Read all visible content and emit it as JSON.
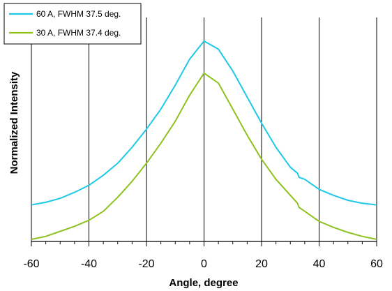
{
  "chart_data": {
    "type": "line",
    "xlabel": "Angle, degree",
    "ylabel": "Normalized Intensity",
    "xlim": [
      -60,
      60
    ],
    "ylim": [
      0,
      1
    ],
    "xticks": [
      -60,
      -40,
      -20,
      0,
      20,
      40,
      60
    ],
    "x_minor_step": 5,
    "grid": "vertical major gridlines",
    "legend_position": "top-left",
    "series": [
      {
        "name": "60 A, FWHM 37.5 deg.",
        "color": "#1ec8e8",
        "x": [
          -60,
          -55,
          -50,
          -45,
          -40,
          -35,
          -30,
          -25,
          -20,
          -15,
          -10,
          -5,
          0,
          5,
          10,
          15,
          20,
          25,
          30,
          32.5,
          33,
          35,
          40,
          45,
          50,
          55,
          60
        ],
        "y": [
          0.172,
          0.185,
          0.205,
          0.235,
          0.27,
          0.32,
          0.38,
          0.46,
          0.55,
          0.65,
          0.77,
          0.9,
          0.99,
          0.95,
          0.84,
          0.71,
          0.58,
          0.46,
          0.36,
          0.33,
          0.31,
          0.3,
          0.25,
          0.22,
          0.195,
          0.18,
          0.172
        ]
      },
      {
        "name": "30 A, FWHM 37.4 deg.",
        "color": "#8dc21f",
        "x": [
          -60,
          -55,
          -50,
          -45,
          -40,
          -35,
          -30,
          -25,
          -20,
          -15,
          -10,
          -5,
          0,
          5,
          10,
          15,
          20,
          25,
          30,
          32.5,
          33,
          35,
          40,
          45,
          50,
          55,
          60
        ],
        "y": [
          0.0,
          0.015,
          0.04,
          0.065,
          0.095,
          0.14,
          0.21,
          0.29,
          0.38,
          0.48,
          0.59,
          0.72,
          0.83,
          0.78,
          0.65,
          0.52,
          0.4,
          0.3,
          0.22,
          0.18,
          0.16,
          0.14,
          0.09,
          0.06,
          0.035,
          0.015,
          0.0
        ]
      }
    ]
  }
}
